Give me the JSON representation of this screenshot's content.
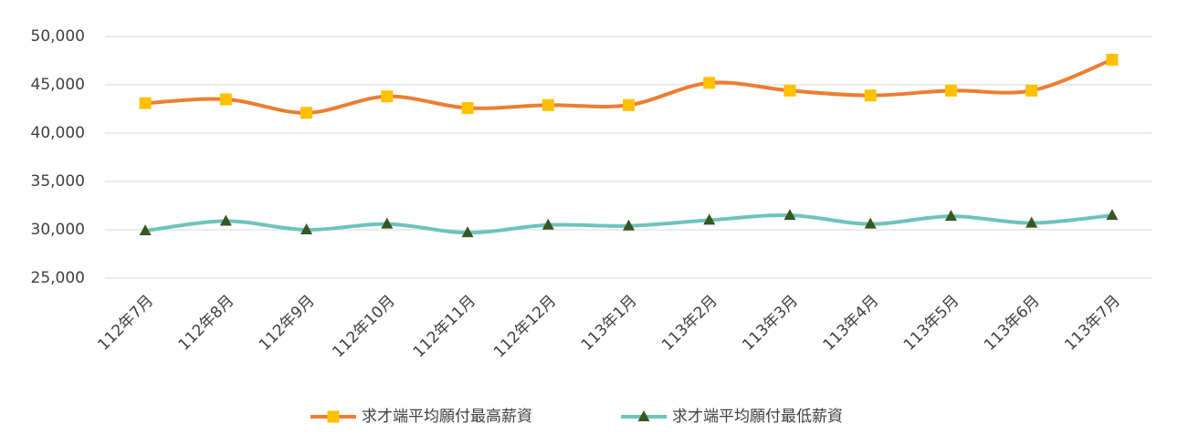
{
  "chart_data": {
    "type": "line",
    "categories": [
      "112年7月",
      "112年8月",
      "112年9月",
      "112年10月",
      "112年11月",
      "112年12月",
      "113年1月",
      "113年2月",
      "113年3月",
      "113年4月",
      "113年5月",
      "113年6月",
      "113年7月"
    ],
    "series": [
      {
        "name": "求才端平均願付最高薪資",
        "color": "#ed7d31",
        "marker_color": "#ffc000",
        "marker": "square",
        "values": [
          43100,
          43500,
          42100,
          43800,
          42600,
          42900,
          42900,
          45200,
          44400,
          43900,
          44400,
          44400,
          47600
        ]
      },
      {
        "name": "求才端平均願付最低薪資",
        "color": "#6cc4bc",
        "marker_color": "#375623",
        "marker": "triangle",
        "values": [
          29900,
          30900,
          30000,
          30600,
          29700,
          30500,
          30400,
          31000,
          31500,
          30600,
          31400,
          30700,
          31500
        ]
      }
    ],
    "ylim": [
      25000,
      50000
    ],
    "yticks": [
      {
        "value": 25000,
        "label": "25,000"
      },
      {
        "value": 30000,
        "label": "30,000"
      },
      {
        "value": 35000,
        "label": "35,000"
      },
      {
        "value": 40000,
        "label": "40,000"
      },
      {
        "value": 45000,
        "label": "45,000"
      },
      {
        "value": 50000,
        "label": "50,000"
      }
    ],
    "grid": true,
    "legend": "bottom"
  }
}
